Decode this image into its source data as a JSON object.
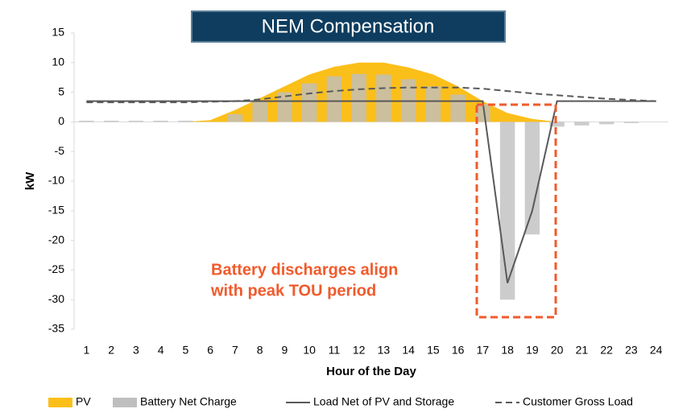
{
  "chart_data": {
    "type": "combo",
    "title": "NEM Compensation",
    "x_label": "Hour of the Day",
    "y_label": "kW",
    "annotation": [
      "Battery discharges align",
      "with peak TOU period"
    ],
    "categories": [
      1,
      2,
      3,
      4,
      5,
      6,
      7,
      8,
      9,
      10,
      11,
      12,
      13,
      14,
      15,
      16,
      17,
      18,
      19,
      20,
      21,
      22,
      23,
      24
    ],
    "ylim": [
      -35,
      15
    ],
    "yticks": [
      -35,
      -30,
      -25,
      -20,
      -15,
      -10,
      -5,
      0,
      5,
      10,
      15
    ],
    "series": [
      {
        "name": "PV",
        "type": "area",
        "color": "#fbbf1a",
        "values": [
          0,
          0,
          0,
          0,
          0,
          0.3,
          2,
          4,
          6,
          8,
          9.3,
          10,
          10,
          9.2,
          8,
          6,
          3.5,
          1.5,
          0.5,
          0,
          0,
          0,
          0,
          0
        ]
      },
      {
        "name": "Battery Net Charge",
        "type": "bar",
        "color": "#bfbfbf",
        "values": [
          0.2,
          0.2,
          0.2,
          0.2,
          0.2,
          0,
          1.3,
          3.5,
          5,
          6.5,
          7.7,
          8.1,
          8,
          7.2,
          6,
          4.6,
          3,
          -30,
          -19,
          -0.8,
          -0.6,
          -0.4,
          -0.2,
          0
        ]
      },
      {
        "name": "Load Net of PV and Storage",
        "type": "line",
        "color": "#595959",
        "dash": false,
        "values": [
          3.5,
          3.5,
          3.5,
          3.5,
          3.5,
          3.5,
          3.5,
          3.5,
          3.5,
          3.5,
          3.5,
          3.5,
          3.5,
          3.5,
          3.5,
          3.5,
          3.5,
          -27.2,
          -15,
          3.5,
          3.5,
          3.5,
          3.5,
          3.5
        ]
      },
      {
        "name": "Customer Gross Load",
        "type": "line",
        "color": "#595959",
        "dash": true,
        "values": [
          3.3,
          3.3,
          3.3,
          3.3,
          3.3,
          3.4,
          3.5,
          3.8,
          4.3,
          4.8,
          5.2,
          5.5,
          5.7,
          5.8,
          5.8,
          5.8,
          5.6,
          5.2,
          4.8,
          4.5,
          4.2,
          3.9,
          3.7,
          3.5
        ]
      }
    ]
  }
}
